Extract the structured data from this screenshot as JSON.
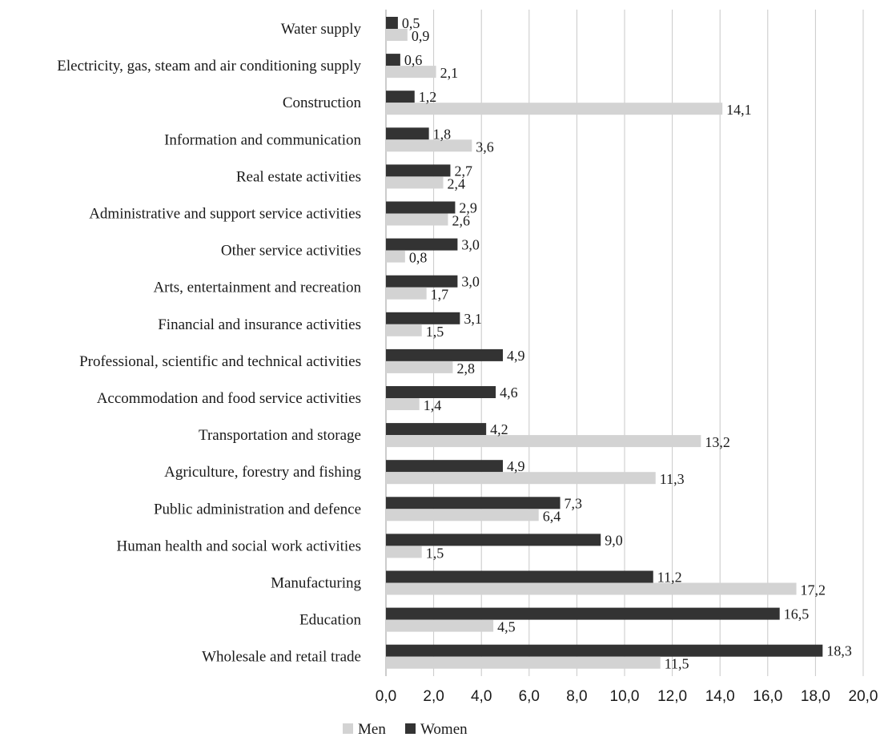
{
  "chart_data": {
    "type": "bar",
    "orientation": "horizontal",
    "categories": [
      "Water supply",
      "Electricity, gas, steam and air conditioning supply",
      "Construction",
      "Information and communication",
      "Real estate activities",
      "Administrative and support service activities",
      "Other service activities",
      "Arts, entertainment and recreation",
      "Financial and insurance activities",
      "Professional, scientific and technical activities",
      "Accommodation and food service activities",
      "Transportation and storage",
      "Agriculture, forestry and fishing",
      "Public administration and defence",
      "Human health and social work activities",
      "Manufacturing",
      "Education",
      "Wholesale and retail trade"
    ],
    "series": [
      {
        "name": "Women",
        "color": "#333333",
        "values": [
          0.5,
          0.6,
          1.2,
          1.8,
          2.7,
          2.9,
          3.0,
          3.0,
          3.1,
          4.9,
          4.6,
          4.2,
          4.9,
          7.3,
          9.0,
          11.2,
          16.5,
          18.3
        ],
        "labels": [
          "0,5",
          "0,6",
          "1,2",
          "1,8",
          "2,7",
          "2,9",
          "3,0",
          "3,0",
          "3,1",
          "4,9",
          "4,6",
          "4,2",
          "4,9",
          "7,3",
          "9,0",
          "11,2",
          "16,5",
          "18,3"
        ]
      },
      {
        "name": "Men",
        "color": "#d3d3d3",
        "values": [
          0.9,
          2.1,
          14.1,
          3.6,
          2.4,
          2.6,
          0.8,
          1.7,
          1.5,
          2.8,
          1.4,
          13.2,
          11.3,
          6.4,
          1.5,
          17.2,
          4.5,
          11.5
        ],
        "labels": [
          "0,9",
          "2,1",
          "14,1",
          "3,6",
          "2,4",
          "2,6",
          "0,8",
          "1,7",
          "1,5",
          "2,8",
          "1,4",
          "13,2",
          "11,3",
          "6,4",
          "1,5",
          "17,2",
          "4,5",
          "11,5"
        ]
      }
    ],
    "xlim": [
      0,
      20
    ],
    "xticks": [
      "0,0",
      "2,0",
      "4,0",
      "6,0",
      "8,0",
      "10,0",
      "12,0",
      "14,0",
      "16,0",
      "18,0",
      "20,0"
    ],
    "grid": true,
    "legend": {
      "position": "bottom",
      "entries": [
        {
          "label": "Men",
          "color": "#d3d3d3"
        },
        {
          "label": "Women",
          "color": "#333333"
        }
      ]
    },
    "title": "",
    "xlabel": "",
    "ylabel": ""
  }
}
